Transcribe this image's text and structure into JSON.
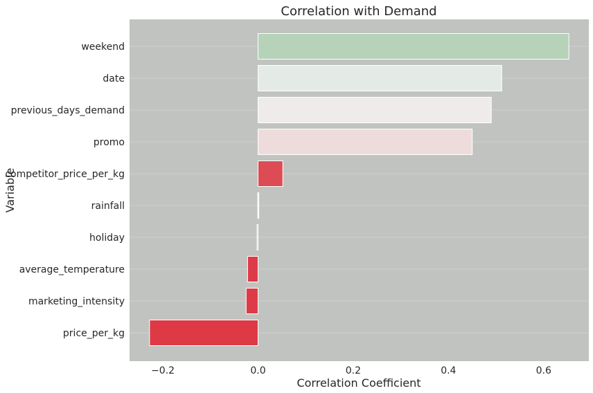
{
  "chart_data": {
    "type": "bar",
    "orientation": "horizontal",
    "title": "Correlation with Demand",
    "xlabel": "Correlation Coefficient",
    "ylabel": "Variable",
    "categories": [
      "weekend",
      "date",
      "previous_days_demand",
      "promo",
      "competitor_price_per_kg",
      "rainfall",
      "holiday",
      "average_temperature",
      "marketing_intensity",
      "price_per_kg"
    ],
    "values": [
      0.653,
      0.512,
      0.49,
      0.45,
      0.052,
      0.001,
      -0.002,
      -0.022,
      -0.025,
      -0.228
    ],
    "bar_colors": [
      "#b6d2b9",
      "#e4ebe6",
      "#efebeb",
      "#eedcdd",
      "#dd4b55",
      "#ffffff",
      "#e8cdd0",
      "#dd3b47",
      "#dd3b47",
      "#dd3a46"
    ],
    "xlim": [
      -0.27,
      0.695
    ],
    "xticks": [
      -0.2,
      0.0,
      0.2,
      0.4,
      0.6
    ],
    "xtick_labels": [
      "−0.2",
      "0.0",
      "0.2",
      "0.4",
      "0.6"
    ],
    "grid": true,
    "plot_background": "#c1c3c0",
    "grid_color": "#d0d2cf",
    "bar_edge_color": "#ffffff"
  }
}
